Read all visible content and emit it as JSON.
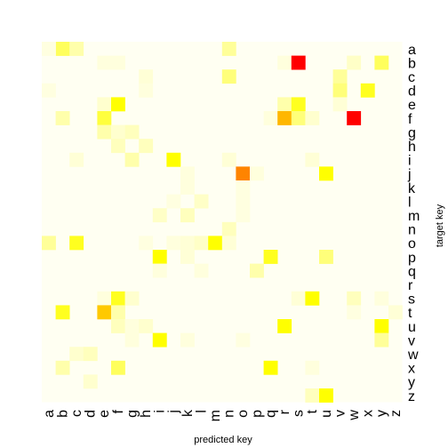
{
  "chart_data": {
    "type": "heatmap",
    "xlabel": "predicted key",
    "ylabel": "target key",
    "x_categories": [
      "a",
      "b",
      "c",
      "d",
      "e",
      "f",
      "g",
      "h",
      "i",
      "j",
      "k",
      "l",
      "m",
      "n",
      "o",
      "p",
      "q",
      "r",
      "s",
      "t",
      "u",
      "v",
      "w",
      "x",
      "y",
      "z"
    ],
    "y_categories": [
      "a",
      "b",
      "c",
      "d",
      "e",
      "f",
      "g",
      "h",
      "i",
      "j",
      "k",
      "l",
      "m",
      "n",
      "o",
      "p",
      "q",
      "r",
      "s",
      "t",
      "u",
      "v",
      "w",
      "x",
      "y",
      "z"
    ],
    "color_scale": [
      "#fffff2",
      "#ffff99",
      "#ffff00",
      "#ffa500",
      "#ff0000"
    ],
    "value_range": [
      0,
      1
    ],
    "cells": [
      {
        "x": "b",
        "y": "a",
        "v": 0.35
      },
      {
        "x": "c",
        "y": "a",
        "v": 0.2
      },
      {
        "x": "n",
        "y": "a",
        "v": 0.25
      },
      {
        "x": "a",
        "y": "a",
        "v": 0.05
      },
      {
        "x": "e",
        "y": "b",
        "v": 0.06
      },
      {
        "x": "f",
        "y": "b",
        "v": 0.06
      },
      {
        "x": "r",
        "y": "b",
        "v": 0.06
      },
      {
        "x": "s",
        "y": "b",
        "v": 1.0
      },
      {
        "x": "w",
        "y": "b",
        "v": 0.12
      },
      {
        "x": "y",
        "y": "b",
        "v": 0.35
      },
      {
        "x": "h",
        "y": "c",
        "v": 0.08
      },
      {
        "x": "n",
        "y": "c",
        "v": 0.3
      },
      {
        "x": "v",
        "y": "c",
        "v": 0.25
      },
      {
        "x": "a",
        "y": "d",
        "v": 0.05
      },
      {
        "x": "h",
        "y": "d",
        "v": 0.06
      },
      {
        "x": "v",
        "y": "d",
        "v": 0.3
      },
      {
        "x": "x",
        "y": "d",
        "v": 0.45
      },
      {
        "x": "e",
        "y": "e",
        "v": 0.1
      },
      {
        "x": "f",
        "y": "e",
        "v": 0.5
      },
      {
        "x": "r",
        "y": "e",
        "v": 0.2
      },
      {
        "x": "s",
        "y": "e",
        "v": 0.45
      },
      {
        "x": "v",
        "y": "e",
        "v": 0.08
      },
      {
        "x": "b",
        "y": "f",
        "v": 0.2
      },
      {
        "x": "e",
        "y": "f",
        "v": 0.4
      },
      {
        "x": "q",
        "y": "f",
        "v": 0.06
      },
      {
        "x": "r",
        "y": "f",
        "v": 0.7
      },
      {
        "x": "s",
        "y": "f",
        "v": 0.3
      },
      {
        "x": "t",
        "y": "f",
        "v": 0.1
      },
      {
        "x": "w",
        "y": "f",
        "v": 1.0
      },
      {
        "x": "e",
        "y": "g",
        "v": 0.2
      },
      {
        "x": "f",
        "y": "g",
        "v": 0.1
      },
      {
        "x": "g",
        "y": "g",
        "v": 0.15
      },
      {
        "x": "f",
        "y": "h",
        "v": 0.15
      },
      {
        "x": "h",
        "y": "h",
        "v": 0.15
      },
      {
        "x": "c",
        "y": "i",
        "v": 0.08
      },
      {
        "x": "g",
        "y": "i",
        "v": 0.2
      },
      {
        "x": "j",
        "y": "i",
        "v": 0.5
      },
      {
        "x": "n",
        "y": "i",
        "v": 0.08
      },
      {
        "x": "t",
        "y": "i",
        "v": 0.08
      },
      {
        "x": "k",
        "y": "j",
        "v": 0.06
      },
      {
        "x": "o",
        "y": "j",
        "v": 0.8
      },
      {
        "x": "p",
        "y": "j",
        "v": 0.06
      },
      {
        "x": "u",
        "y": "j",
        "v": 0.5
      },
      {
        "x": "k",
        "y": "k",
        "v": 0.06
      },
      {
        "x": "o",
        "y": "k",
        "v": 0.05
      },
      {
        "x": "j",
        "y": "l",
        "v": 0.05
      },
      {
        "x": "l",
        "y": "l",
        "v": 0.12
      },
      {
        "x": "o",
        "y": "l",
        "v": 0.05
      },
      {
        "x": "i",
        "y": "m",
        "v": 0.12
      },
      {
        "x": "k",
        "y": "m",
        "v": 0.15
      },
      {
        "x": "o",
        "y": "m",
        "v": 0.05
      },
      {
        "x": "n",
        "y": "n",
        "v": 0.15
      },
      {
        "x": "a",
        "y": "o",
        "v": 0.25
      },
      {
        "x": "c",
        "y": "o",
        "v": 0.45
      },
      {
        "x": "h",
        "y": "o",
        "v": 0.05
      },
      {
        "x": "j",
        "y": "o",
        "v": 0.06
      },
      {
        "x": "k",
        "y": "o",
        "v": 0.08
      },
      {
        "x": "l",
        "y": "o",
        "v": 0.12
      },
      {
        "x": "m",
        "y": "o",
        "v": 0.5
      },
      {
        "x": "n",
        "y": "o",
        "v": 0.08
      },
      {
        "x": "i",
        "y": "p",
        "v": 0.5
      },
      {
        "x": "k",
        "y": "p",
        "v": 0.08
      },
      {
        "x": "q",
        "y": "p",
        "v": 0.45
      },
      {
        "x": "u",
        "y": "p",
        "v": 0.3
      },
      {
        "x": "i",
        "y": "q",
        "v": 0.06
      },
      {
        "x": "l",
        "y": "q",
        "v": 0.06
      },
      {
        "x": "p",
        "y": "q",
        "v": 0.2
      },
      {
        "x": "e",
        "y": "s",
        "v": 0.06
      },
      {
        "x": "f",
        "y": "s",
        "v": 0.45
      },
      {
        "x": "g",
        "y": "s",
        "v": 0.1
      },
      {
        "x": "s",
        "y": "s",
        "v": 0.08
      },
      {
        "x": "t",
        "y": "s",
        "v": 0.5
      },
      {
        "x": "w",
        "y": "s",
        "v": 0.15
      },
      {
        "x": "y",
        "y": "s",
        "v": 0.06
      },
      {
        "x": "b",
        "y": "t",
        "v": 0.45
      },
      {
        "x": "e",
        "y": "t",
        "v": 0.65
      },
      {
        "x": "f",
        "y": "t",
        "v": 0.2
      },
      {
        "x": "w",
        "y": "t",
        "v": 0.05
      },
      {
        "x": "z",
        "y": "t",
        "v": 0.08
      },
      {
        "x": "f",
        "y": "u",
        "v": 0.15
      },
      {
        "x": "g",
        "y": "u",
        "v": 0.06
      },
      {
        "x": "h",
        "y": "u",
        "v": 0.1
      },
      {
        "x": "r",
        "y": "u",
        "v": 0.5
      },
      {
        "x": "y",
        "y": "u",
        "v": 0.5
      },
      {
        "x": "g",
        "y": "v",
        "v": 0.06
      },
      {
        "x": "i",
        "y": "v",
        "v": 0.5
      },
      {
        "x": "k",
        "y": "v",
        "v": 0.06
      },
      {
        "x": "o",
        "y": "v",
        "v": 0.05
      },
      {
        "x": "y",
        "y": "v",
        "v": 0.25
      },
      {
        "x": "c",
        "y": "w",
        "v": 0.1
      },
      {
        "x": "d",
        "y": "w",
        "v": 0.15
      },
      {
        "x": "b",
        "y": "x",
        "v": 0.2
      },
      {
        "x": "f",
        "y": "x",
        "v": 0.35
      },
      {
        "x": "q",
        "y": "x",
        "v": 0.5
      },
      {
        "x": "t",
        "y": "x",
        "v": 0.06
      },
      {
        "x": "d",
        "y": "y",
        "v": 0.1
      },
      {
        "x": "t",
        "y": "z",
        "v": 0.15
      },
      {
        "x": "u",
        "y": "z",
        "v": 0.5
      }
    ]
  }
}
